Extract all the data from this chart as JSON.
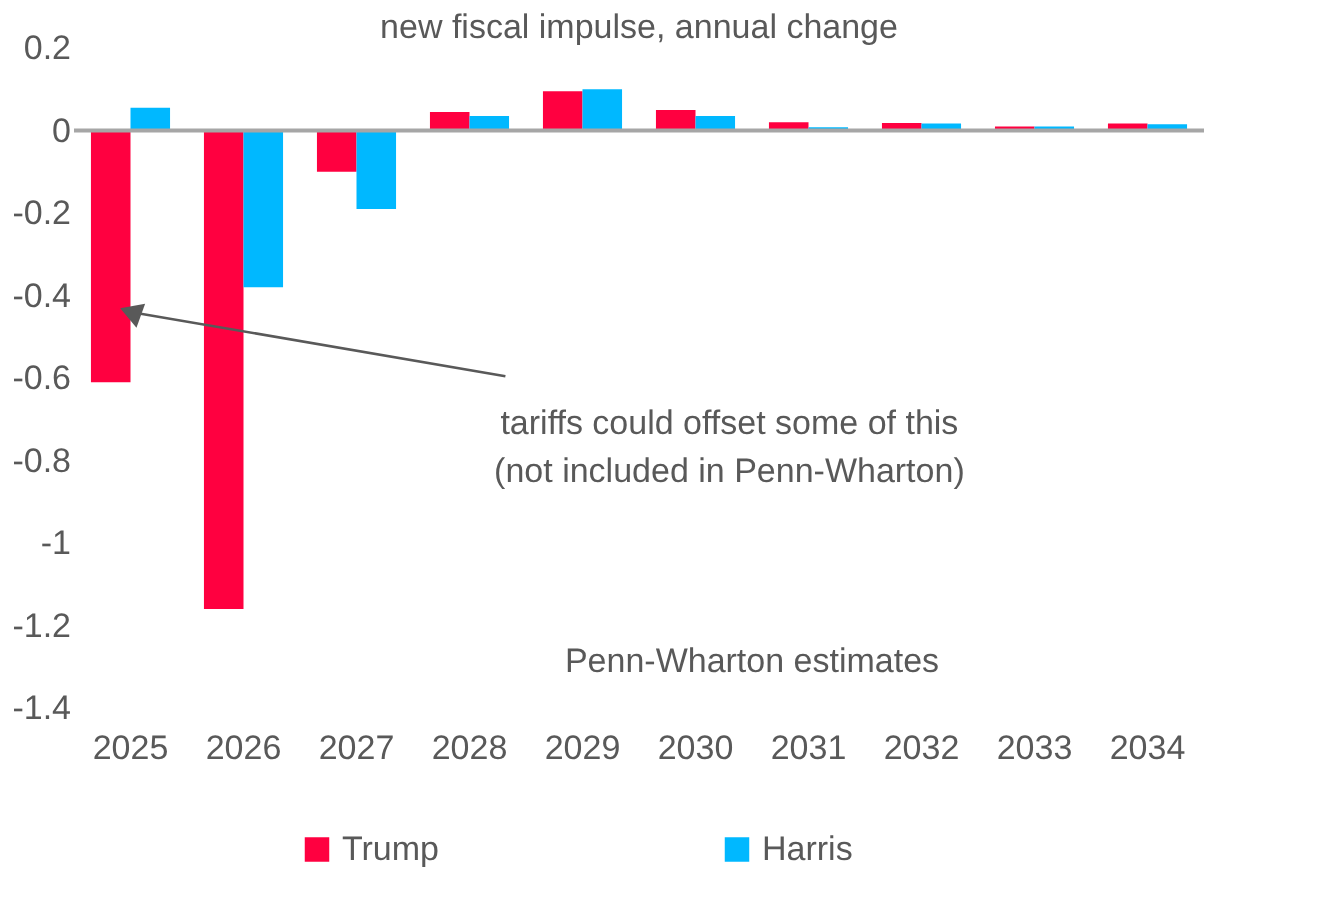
{
  "chart_data": {
    "type": "bar",
    "title": "new fiscal impulse, annual change",
    "categories": [
      "2025",
      "2026",
      "2027",
      "2028",
      "2029",
      "2030",
      "2031",
      "2032",
      "2033",
      "2034"
    ],
    "series": [
      {
        "name": "Trump",
        "color": "#ff0040",
        "values": [
          -0.61,
          -1.16,
          -0.1,
          0.045,
          0.095,
          0.05,
          0.02,
          0.018,
          0.01,
          0.017
        ]
      },
      {
        "name": "Harris",
        "color": "#00b8ff",
        "values": [
          0.055,
          -0.38,
          -0.19,
          0.035,
          0.1,
          0.035,
          0.008,
          0.017,
          0.01,
          0.015
        ]
      }
    ],
    "ylim": [
      -1.4,
      0.2
    ],
    "yticks": [
      -1.4,
      -1.2,
      -1,
      -0.8,
      -0.6,
      -0.4,
      -0.2,
      0,
      0.2
    ],
    "annotations": [
      {
        "text": "tariffs could offset some of this\n(not included in Penn-Wharton)",
        "x": "2025",
        "y": -0.44
      },
      "Penn-Wharton estimates"
    ],
    "ref_lines": [
      {
        "axis": "y",
        "value": 0,
        "color": "#a6a6a6"
      }
    ],
    "grid": false,
    "legend": "bottom"
  }
}
